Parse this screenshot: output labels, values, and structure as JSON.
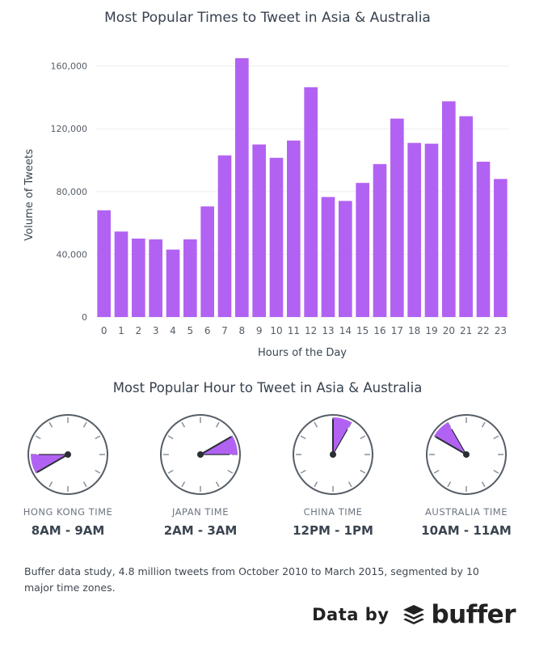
{
  "colors": {
    "bar": "#b262f2",
    "axis_text": "#555d66",
    "grid": "#eeeeee",
    "clock_face": "#555d66",
    "clock_wedge": "#b262f2"
  },
  "chart_data": {
    "type": "bar",
    "title": "Most Popular Times to Tweet in Asia & Australia",
    "xlabel": "Hours of the Day",
    "ylabel": "Volume of Tweets",
    "categories": [
      "0",
      "1",
      "2",
      "3",
      "4",
      "5",
      "6",
      "7",
      "8",
      "9",
      "10",
      "11",
      "12",
      "13",
      "14",
      "15",
      "16",
      "17",
      "18",
      "19",
      "20",
      "21",
      "22",
      "23"
    ],
    "values": [
      68000,
      54500,
      50000,
      49500,
      43000,
      49500,
      70500,
      103000,
      165000,
      110000,
      101500,
      112500,
      146500,
      76500,
      74000,
      85500,
      97500,
      126500,
      111000,
      110500,
      137500,
      128000,
      99000,
      88000
    ],
    "yticks": [
      0,
      40000,
      80000,
      120000,
      160000
    ],
    "ytick_labels": [
      "0",
      "40,000",
      "80,000",
      "120,000",
      "160,000"
    ],
    "ylim": [
      0,
      166000
    ],
    "grid": true
  },
  "clocks": {
    "title": "Most Popular Hour to Tweet in Asia & Australia",
    "items": [
      {
        "zone": "HONG KONG TIME",
        "range": "8AM - 9AM",
        "start_hour": 8
      },
      {
        "zone": "JAPAN TIME",
        "range": "2AM - 3AM",
        "start_hour": 2
      },
      {
        "zone": "CHINA TIME",
        "range": "12PM - 1PM",
        "start_hour": 12
      },
      {
        "zone": "AUSTRALIA TIME",
        "range": "10AM - 11AM",
        "start_hour": 10
      }
    ]
  },
  "footnote": "Buffer data study, 4.8 million tweets from October 2010 to March 2015, segmented by 10 major time zones.",
  "credit": {
    "label": "Data by",
    "brand": "buffer",
    "logo_icon": "buffer-stack-icon"
  }
}
